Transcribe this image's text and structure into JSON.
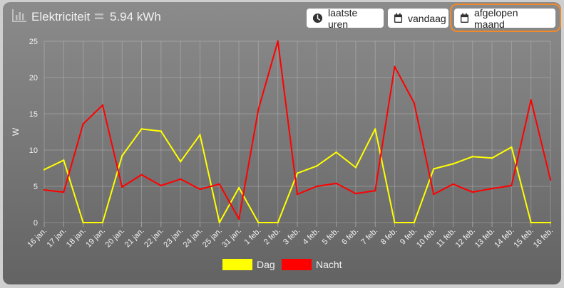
{
  "header": {
    "icon": "bar-chart-icon",
    "title": "Elektriciteit",
    "total": "5.94 kWh"
  },
  "buttons": {
    "recent_hours": {
      "label": "laatste uren",
      "icon": "clock-icon"
    },
    "today": {
      "label": "vandaag",
      "icon": "calendar-icon"
    },
    "last_month": {
      "label": "afgelopen maand",
      "icon": "calendar-icon",
      "focused": true
    }
  },
  "colors": {
    "focus": "#f0892a",
    "dag": "#ffff00",
    "nacht": "#ff0000"
  },
  "chart_data": {
    "type": "line",
    "ylabel": "W",
    "ylim": [
      0,
      25
    ],
    "yticks": [
      0,
      5,
      10,
      15,
      20,
      25
    ],
    "grid": true,
    "legend_position": "bottom",
    "categories": [
      "16 jan.",
      "17 jan.",
      "18 jan.",
      "19 jan.",
      "20 jan.",
      "21 jan.",
      "22 jan.",
      "23 jan.",
      "24 jan.",
      "25 jan.",
      "31 jan.",
      "1 feb.",
      "2 feb.",
      "3 feb.",
      "4 feb.",
      "5 feb.",
      "6 feb.",
      "7 feb.",
      "8 feb.",
      "9 feb.",
      "10 feb.",
      "11 feb.",
      "12 feb.",
      "13 feb.",
      "14 feb.",
      "15 feb.",
      "16 feb."
    ],
    "series": [
      {
        "name": "Dag",
        "color": "#ffff00",
        "values": [
          7.3,
          8.6,
          0,
          0,
          9.2,
          12.9,
          12.6,
          8.4,
          12.1,
          0,
          4.8,
          0,
          0,
          6.8,
          7.8,
          9.7,
          7.6,
          12.9,
          0,
          0,
          7.4,
          8.1,
          9.1,
          8.9,
          10.4,
          0,
          0
        ]
      },
      {
        "name": "Nacht",
        "color": "#ff0000",
        "values": [
          4.5,
          4.2,
          13.6,
          16.2,
          4.9,
          6.6,
          5.1,
          6.0,
          4.6,
          5.3,
          0.5,
          15.6,
          25.0,
          3.9,
          5.0,
          5.4,
          4.0,
          4.4,
          21.5,
          16.5,
          3.9,
          5.3,
          4.2,
          4.7,
          5.1,
          16.9,
          5.9
        ]
      }
    ]
  }
}
